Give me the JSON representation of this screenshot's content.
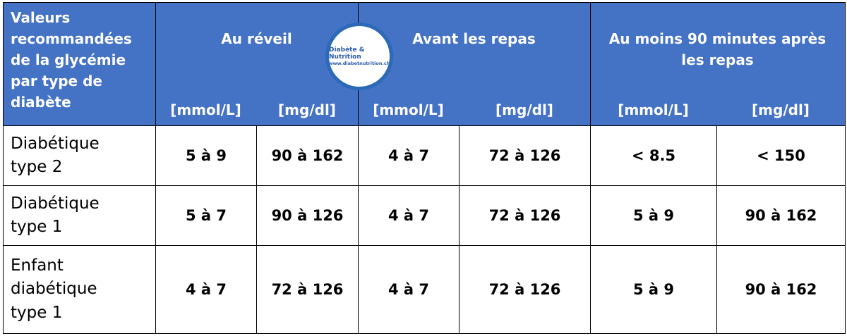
{
  "header": {
    "row_label": "Valeurs recommandées de la glycémie par type de diabète",
    "groups": [
      {
        "label": "Au réveil",
        "units": [
          "[mmol/L]",
          "[mg/dl]"
        ]
      },
      {
        "label": "Avant les repas",
        "units": [
          "[mmol/L]",
          "[mg/dl]"
        ]
      },
      {
        "label": "Au moins 90 minutes après les repas",
        "units": [
          "[mmol/L]",
          "[mg/dl]"
        ]
      }
    ]
  },
  "logo": {
    "title": "Diabète & Nutrition",
    "url": "www.diabetnutrition.ch"
  },
  "rows": [
    {
      "label": "Diabétique type 2",
      "values": [
        "5 à 9",
        "90 à 162",
        "4 à 7",
        "72 à 126",
        "< 8.5",
        "< 150"
      ]
    },
    {
      "label": "Diabétique type 1",
      "values": [
        "5 à 7",
        "90 à 126",
        "4 à 7",
        "72 à 126",
        "5 à 9",
        "90 à 162"
      ]
    },
    {
      "label": "Enfant diabétique type 1",
      "values": [
        "4 à 7",
        "72 à 126",
        "4 à 7",
        "72 à 126",
        "5 à 9",
        "90 à 162"
      ]
    }
  ]
}
